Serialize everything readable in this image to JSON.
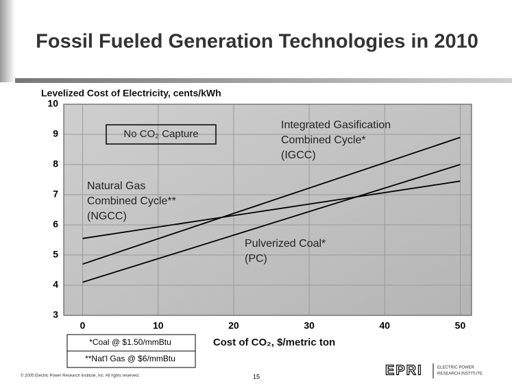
{
  "chart_data": {
    "type": "line",
    "title": "Fossil Fueled Generation Technologies in 2010",
    "y_label": "Levelized Cost of Electricity, cents/kWh",
    "x_label": "Cost of CO₂, $/metric ton",
    "annotation": "No CO₂ Capture",
    "x": [
      0,
      50
    ],
    "series": [
      {
        "name": [
          "Integrated Gasification",
          "Combined Cycle*",
          "(IGCC)"
        ],
        "color": "#000000",
        "values": [
          4.7,
          8.9
        ]
      },
      {
        "name": [
          "Natural Gas",
          "Combined Cycle**",
          "(NGCC)"
        ],
        "color": "#000000",
        "values": [
          5.55,
          7.45
        ]
      },
      {
        "name": [
          "Pulverized Coal*",
          "(PC)"
        ],
        "color": "#000000",
        "values": [
          4.1,
          8.0
        ]
      }
    ],
    "xlim": [
      -2.5,
      51.5
    ],
    "ylim": [
      3,
      10
    ],
    "xticks": [
      0,
      10,
      20,
      30,
      40,
      50
    ],
    "yticks": [
      3,
      4,
      5,
      6,
      7,
      8,
      9,
      10
    ],
    "grid": true,
    "footnotes": [
      "*Coal @  $1.50/mmBtu",
      "**Nat'l Gas @ $6/mmBtu"
    ],
    "copyright": "© 2005 Electric Power Research Institute, Inc. All rights reserved.",
    "page_number": "15",
    "logo": "EPRI",
    "logo_text": [
      "ELECTRIC POWER",
      "RESEARCH INSTITUTE"
    ]
  }
}
